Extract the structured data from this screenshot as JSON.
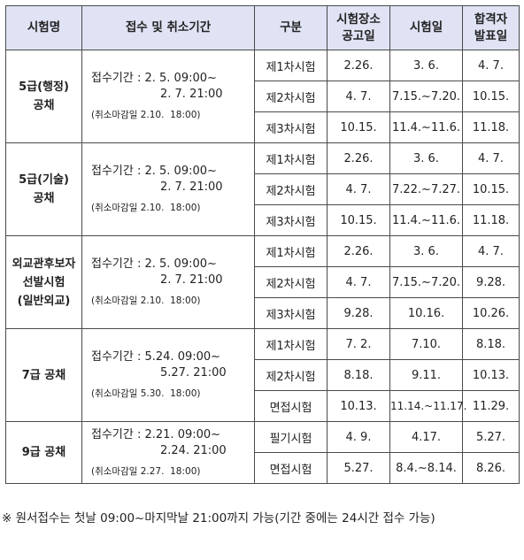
{
  "headers": {
    "exam": "시험명",
    "period": "접수 및 취소기간",
    "stage": "구분",
    "venue": [
      "시험장소",
      "공고일"
    ],
    "date": "시험일",
    "result": [
      "합격자",
      "발표일"
    ]
  },
  "groups": [
    {
      "name": [
        "5급(행정)",
        "공채"
      ],
      "period": [
        "접수기간 : 2. 5. 09:00~",
        "2. 7. 21:00"
      ],
      "cancel": "(취소마감일 2.10.  18:00)",
      "rows": [
        {
          "stage": "제1차시험",
          "venue": "2.26.",
          "date": "3. 6.",
          "result": "4. 7."
        },
        {
          "stage": "제2차시험",
          "venue": "4. 7.",
          "date": "7.15.~7.20.",
          "result": "10.15."
        },
        {
          "stage": "제3차시험",
          "venue": "10.15.",
          "date": "11.4.~11.6.",
          "result": "11.18."
        }
      ]
    },
    {
      "name": [
        "5급(기술)",
        "공채"
      ],
      "period": [
        "접수기간 : 2. 5. 09:00~",
        "2. 7. 21:00"
      ],
      "cancel": "(취소마감일 2.10.  18:00)",
      "rows": [
        {
          "stage": "제1차시험",
          "venue": "2.26.",
          "date": "3. 6.",
          "result": "4. 7."
        },
        {
          "stage": "제2차시험",
          "venue": "4. 7.",
          "date": "7.22.~7.27.",
          "result": "10.15."
        },
        {
          "stage": "제3차시험",
          "venue": "10.15.",
          "date": "11.4.~11.6.",
          "result": "11.18."
        }
      ]
    },
    {
      "name": [
        "외교관후보자",
        "선발시험",
        "(일반외교)"
      ],
      "period": [
        "접수기간 : 2. 5. 09:00~",
        "2. 7. 21:00"
      ],
      "cancel": "(취소마감일 2.10.  18:00)",
      "rows": [
        {
          "stage": "제1차시험",
          "venue": "2.26.",
          "date": "3. 6.",
          "result": "4. 7."
        },
        {
          "stage": "제2차시험",
          "venue": "4. 7.",
          "date": "7.15.~7.20.",
          "result": "9.28."
        },
        {
          "stage": "제3차시험",
          "venue": "9.28.",
          "date": "10.16.",
          "result": "10.26."
        }
      ]
    },
    {
      "name": [
        "7급 공채"
      ],
      "period": [
        "접수기간 : 5.24. 09:00~",
        "5.27. 21:00"
      ],
      "cancel": "(취소마감일 5.30.  18:00)",
      "rows": [
        {
          "stage": "제1차시험",
          "venue": "7. 2.",
          "date": "7.10.",
          "result": "8.18."
        },
        {
          "stage": "제2차시험",
          "venue": "8.18.",
          "date": "9.11.",
          "result": "10.13."
        },
        {
          "stage": "면접시험",
          "venue": "10.13.",
          "date": "11.14.~11.17.",
          "result": "11.29."
        }
      ]
    },
    {
      "name": [
        "9급 공채"
      ],
      "period": [
        "접수기간 : 2.21. 09:00~",
        "2.24. 21:00"
      ],
      "cancel": "(취소마감일 2.27.  18:00)",
      "rows": [
        {
          "stage": "필기시험",
          "venue": "4. 9.",
          "date": "4.17.",
          "result": "5.27."
        },
        {
          "stage": "면접시험",
          "venue": "5.27.",
          "date": "8.4.~8.14.",
          "result": "8.26."
        }
      ]
    }
  ],
  "footnote": "※ 원서접수는 첫날 09:00~마지막날 21:00까지 가능(기간 중에는 24시간 접수 가능)"
}
